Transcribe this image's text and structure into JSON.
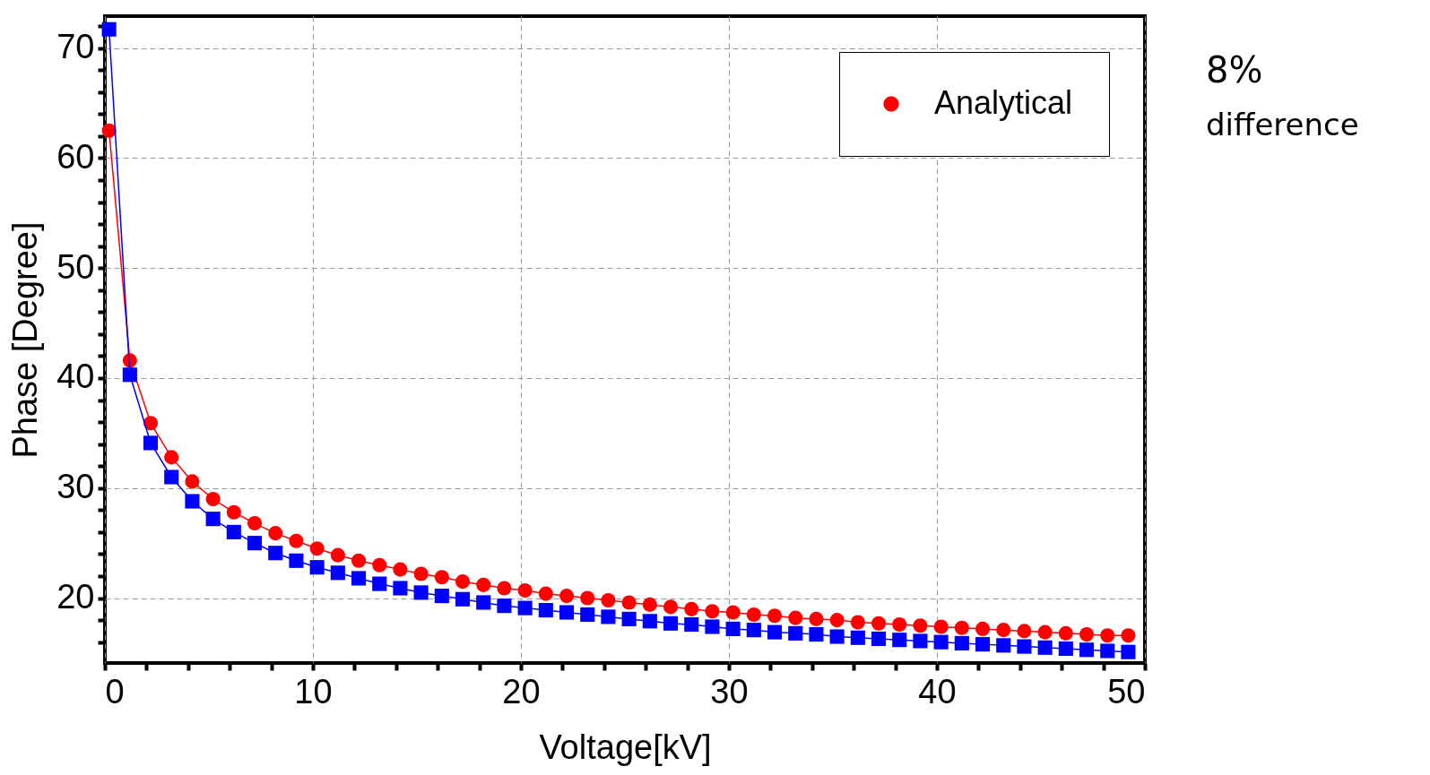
{
  "chart_data": {
    "type": "line",
    "xlabel": "Voltage[kV]",
    "ylabel": "Phase [Degree]",
    "x": [
      0.2,
      1.2,
      2.2,
      3.2,
      4.2,
      5.2,
      6.2,
      7.2,
      8.2,
      9.2,
      10.2,
      11.2,
      12.2,
      13.2,
      14.2,
      15.2,
      16.2,
      17.2,
      18.2,
      19.2,
      20.2,
      21.2,
      22.2,
      23.2,
      24.2,
      25.2,
      26.2,
      27.2,
      28.2,
      29.2,
      30.2,
      31.2,
      32.2,
      33.2,
      34.2,
      35.2,
      36.2,
      37.2,
      38.2,
      39.2,
      40.2,
      41.2,
      42.2,
      43.2,
      44.2,
      45.2,
      46.2,
      47.2,
      48.2,
      49.2
    ],
    "series": [
      {
        "name": "Analytical",
        "color": "#ff0000",
        "marker": "circle",
        "values": [
          62.5,
          41.6,
          35.9,
          32.8,
          30.6,
          29.0,
          27.8,
          26.8,
          25.9,
          25.2,
          24.5,
          23.9,
          23.4,
          23.0,
          22.6,
          22.2,
          21.9,
          21.5,
          21.2,
          20.9,
          20.7,
          20.4,
          20.2,
          20.0,
          19.8,
          19.6,
          19.4,
          19.2,
          19.0,
          18.8,
          18.7,
          18.5,
          18.4,
          18.2,
          18.1,
          18.0,
          17.8,
          17.7,
          17.6,
          17.5,
          17.4,
          17.3,
          17.2,
          17.1,
          17.0,
          16.9,
          16.8,
          16.7,
          16.6,
          16.6
        ]
      },
      {
        "color": "#0000ff",
        "marker": "square",
        "values": [
          71.7,
          40.3,
          34.1,
          31.0,
          28.8,
          27.2,
          26.0,
          25.0,
          24.1,
          23.4,
          22.8,
          22.3,
          21.8,
          21.3,
          20.9,
          20.5,
          20.2,
          19.9,
          19.6,
          19.3,
          19.1,
          18.9,
          18.7,
          18.5,
          18.3,
          18.1,
          17.9,
          17.7,
          17.6,
          17.4,
          17.2,
          17.1,
          16.9,
          16.8,
          16.7,
          16.5,
          16.4,
          16.3,
          16.2,
          16.1,
          16.0,
          15.9,
          15.8,
          15.7,
          15.6,
          15.5,
          15.4,
          15.3,
          15.2,
          15.1
        ]
      }
    ],
    "xlim": [
      0,
      50
    ],
    "xticks": [
      0,
      {
        "value": 2,
        "label": null
      },
      {
        "value": 4,
        "label": null
      },
      {
        "value": 6,
        "label": null
      },
      {
        "value": 8,
        "label": null
      },
      10,
      {
        "value": 12,
        "label": null
      },
      {
        "value": 14,
        "label": null
      },
      {
        "value": 16,
        "label": null
      },
      {
        "value": 18,
        "label": null
      },
      20,
      {
        "value": 22,
        "label": null
      },
      {
        "value": 24,
        "label": null
      },
      {
        "value": 26,
        "label": null
      },
      {
        "value": 28,
        "label": null
      },
      30,
      {
        "value": 32,
        "label": null
      },
      {
        "value": 34,
        "label": null
      },
      {
        "value": 36,
        "label": null
      },
      {
        "value": 38,
        "label": null
      },
      40,
      {
        "value": 42,
        "label": null
      },
      {
        "value": 44,
        "label": null
      },
      {
        "value": 46,
        "label": null
      },
      {
        "value": 48,
        "label": null
      },
      50
    ],
    "ylim": [
      14.1,
      72.9
    ],
    "yticks": [
      {
        "value": 16,
        "label": null
      },
      {
        "value": 18,
        "label": null
      },
      20,
      {
        "value": 22,
        "label": null
      },
      {
        "value": 24,
        "label": null
      },
      {
        "value": 26,
        "label": null
      },
      {
        "value": 28,
        "label": null
      },
      30,
      {
        "value": 32,
        "label": null
      },
      {
        "value": 34,
        "label": null
      },
      {
        "value": 36,
        "label": null
      },
      {
        "value": 38,
        "label": null
      },
      40,
      {
        "value": 42,
        "label": null
      },
      {
        "value": 44,
        "label": null
      },
      {
        "value": 46,
        "label": null
      },
      {
        "value": 48,
        "label": null
      },
      50,
      {
        "value": 52,
        "label": null
      },
      {
        "value": 54,
        "label": null
      },
      {
        "value": 56,
        "label": null
      },
      {
        "value": 58,
        "label": null
      },
      60,
      {
        "value": 62,
        "label": null
      },
      {
        "value": 64,
        "label": null
      },
      {
        "value": 66,
        "label": null
      },
      {
        "value": 68,
        "label": null
      },
      70,
      {
        "value": 72,
        "label": null
      }
    ],
    "grid": true,
    "line_style": "solid",
    "legend": "top right",
    "annotations": [
      "8%",
      "difference"
    ]
  }
}
